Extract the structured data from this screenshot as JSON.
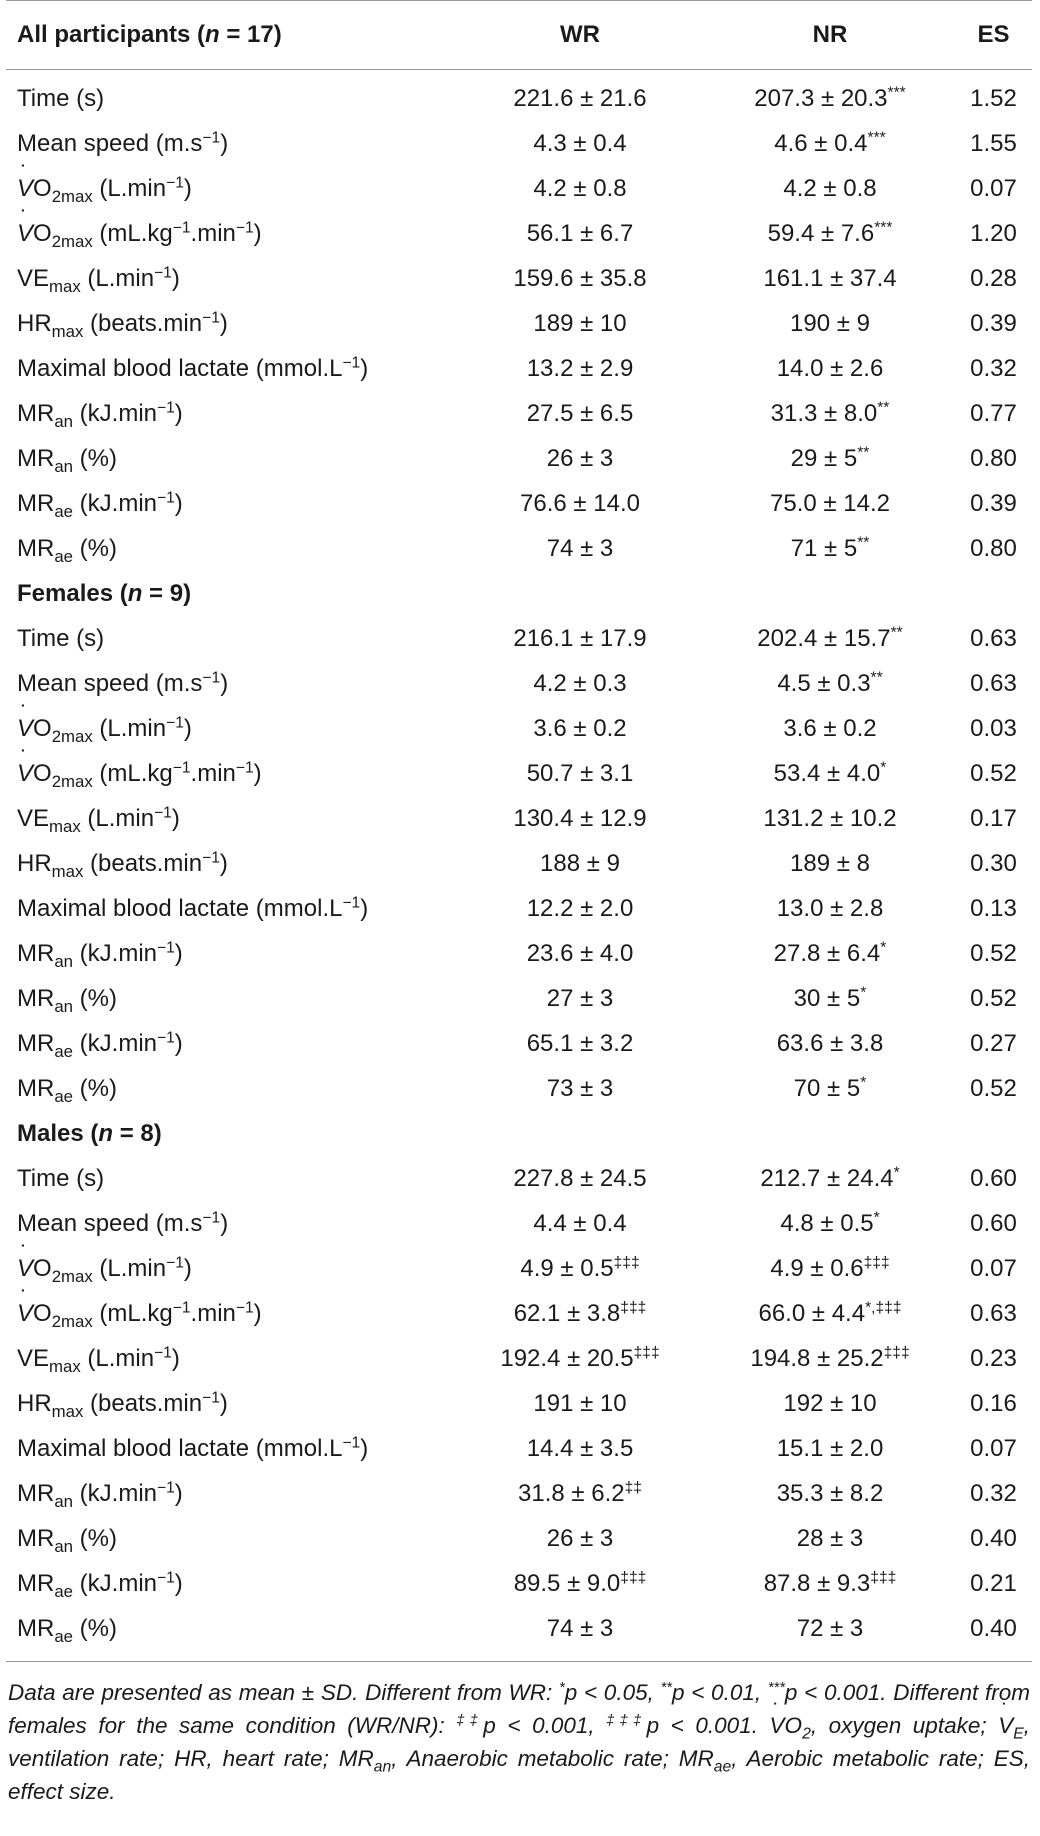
{
  "header": {
    "col1": "All participants (n = 17)",
    "col2": "WR",
    "col3": "NR",
    "col4": "ES"
  },
  "groups": [
    {
      "title": "All participants (n = 17)",
      "rows": [
        [
          "Time (s)",
          "221.6 ± 21.6",
          "207.3 ± 20.3***",
          "1.52"
        ],
        [
          "Mean speed (m.s−1)",
          "4.3 ± 0.4",
          "4.6 ± 0.4***",
          "1.55"
        ],
        [
          "V̇O2max (L.min−1)",
          "4.2 ± 0.8",
          "4.2 ± 0.8",
          "0.07"
        ],
        [
          "V̇O2max (mL.kg−1.min−1)",
          "56.1 ± 6.7",
          "59.4 ± 7.6***",
          "1.20"
        ],
        [
          "VEmax (L.min−1)",
          "159.6 ± 35.8",
          "161.1 ± 37.4",
          "0.28"
        ],
        [
          "HRmax (beats.min−1)",
          "189 ± 10",
          "190 ± 9",
          "0.39"
        ],
        [
          "Maximal blood lactate (mmol.L−1)",
          "13.2 ± 2.9",
          "14.0 ± 2.6",
          "0.32"
        ],
        [
          "MRan (kJ.min−1)",
          "27.5 ± 6.5",
          "31.3 ± 8.0**",
          "0.77"
        ],
        [
          "MRan (%)",
          "26 ± 3",
          "29 ± 5**",
          "0.80"
        ],
        [
          "MRae (kJ.min−1)",
          "76.6 ± 14.0",
          "75.0 ± 14.2",
          "0.39"
        ],
        [
          "MRae (%)",
          "74 ± 3",
          "71 ± 5**",
          "0.80"
        ]
      ]
    },
    {
      "title": "Females (n = 9)",
      "rows": [
        [
          "Time (s)",
          "216.1 ± 17.9",
          "202.4 ± 15.7**",
          "0.63"
        ],
        [
          "Mean speed (m.s−1)",
          "4.2 ± 0.3",
          "4.5 ± 0.3**",
          "0.63"
        ],
        [
          "V̇O2max (L.min−1)",
          "3.6 ± 0.2",
          "3.6 ± 0.2",
          "0.03"
        ],
        [
          "V̇O2max (mL.kg−1.min−1)",
          "50.7 ± 3.1",
          "53.4 ± 4.0*",
          "0.52"
        ],
        [
          "VEmax (L.min−1)",
          "130.4 ± 12.9",
          "131.2 ± 10.2",
          "0.17"
        ],
        [
          "HRmax (beats.min−1)",
          "188 ± 9",
          "189 ± 8",
          "0.30"
        ],
        [
          "Maximal blood lactate (mmol.L−1)",
          "12.2 ± 2.0",
          "13.0 ± 2.8",
          "0.13"
        ],
        [
          "MRan (kJ.min−1)",
          "23.6 ± 4.0",
          "27.8 ± 6.4*",
          "0.52"
        ],
        [
          "MRan (%)",
          "27 ± 3",
          "30 ± 5*",
          "0.52"
        ],
        [
          "MRae (kJ.min−1)",
          "65.1 ± 3.2",
          "63.6 ± 3.8",
          "0.27"
        ],
        [
          "MRae (%)",
          "73 ± 3",
          "70 ± 5*",
          "0.52"
        ]
      ]
    },
    {
      "title": "Males (n = 8)",
      "rows": [
        [
          "Time (s)",
          "227.8 ± 24.5",
          "212.7 ± 24.4*",
          "0.60"
        ],
        [
          "Mean speed (m.s−1)",
          "4.4 ± 0.4",
          "4.8 ± 0.5*",
          "0.60"
        ],
        [
          "V̇O2max (L.min−1)",
          "4.9 ± 0.5‡‡‡",
          "4.9 ± 0.6‡‡‡",
          "0.07"
        ],
        [
          "V̇O2max (mL.kg−1.min−1)",
          "62.1 ± 3.8‡‡‡",
          "66.0 ± 4.4*,‡‡‡",
          "0.63"
        ],
        [
          "VEmax (L.min−1)",
          "192.4 ± 20.5‡‡‡",
          "194.8 ± 25.2‡‡‡",
          "0.23"
        ],
        [
          "HRmax (beats.min−1)",
          "191 ± 10",
          "192 ± 10",
          "0.16"
        ],
        [
          "Maximal blood lactate (mmol.L−1)",
          "14.4 ± 3.5",
          "15.1 ± 2.0",
          "0.07"
        ],
        [
          "MRan (kJ.min−1)",
          "31.8 ± 6.2‡‡",
          "35.3 ± 8.2",
          "0.32"
        ],
        [
          "MRan (%)",
          "26 ± 3",
          "28 ± 3",
          "0.40"
        ],
        [
          "MRae (kJ.min−1)",
          "89.5 ± 9.0‡‡‡",
          "87.8 ± 9.3‡‡‡",
          "0.21"
        ],
        [
          "MRae (%)",
          "74 ± 3",
          "72 ± 3",
          "0.40"
        ]
      ]
    }
  ],
  "footnote": "Data are presented as mean ± SD. Different from WR: *p < 0.05, **p < 0.01, ***p < 0.001. Different from females for the same condition (WR/NR): ‡‡p < 0.001, ‡‡‡p < 0.001. V̇O2, oxygen uptake; V̇E, ventilation rate; HR, heart rate; MRan, Anaerobic metabolic rate; MRae, Aerobic metabolic rate; ES, effect size."
}
